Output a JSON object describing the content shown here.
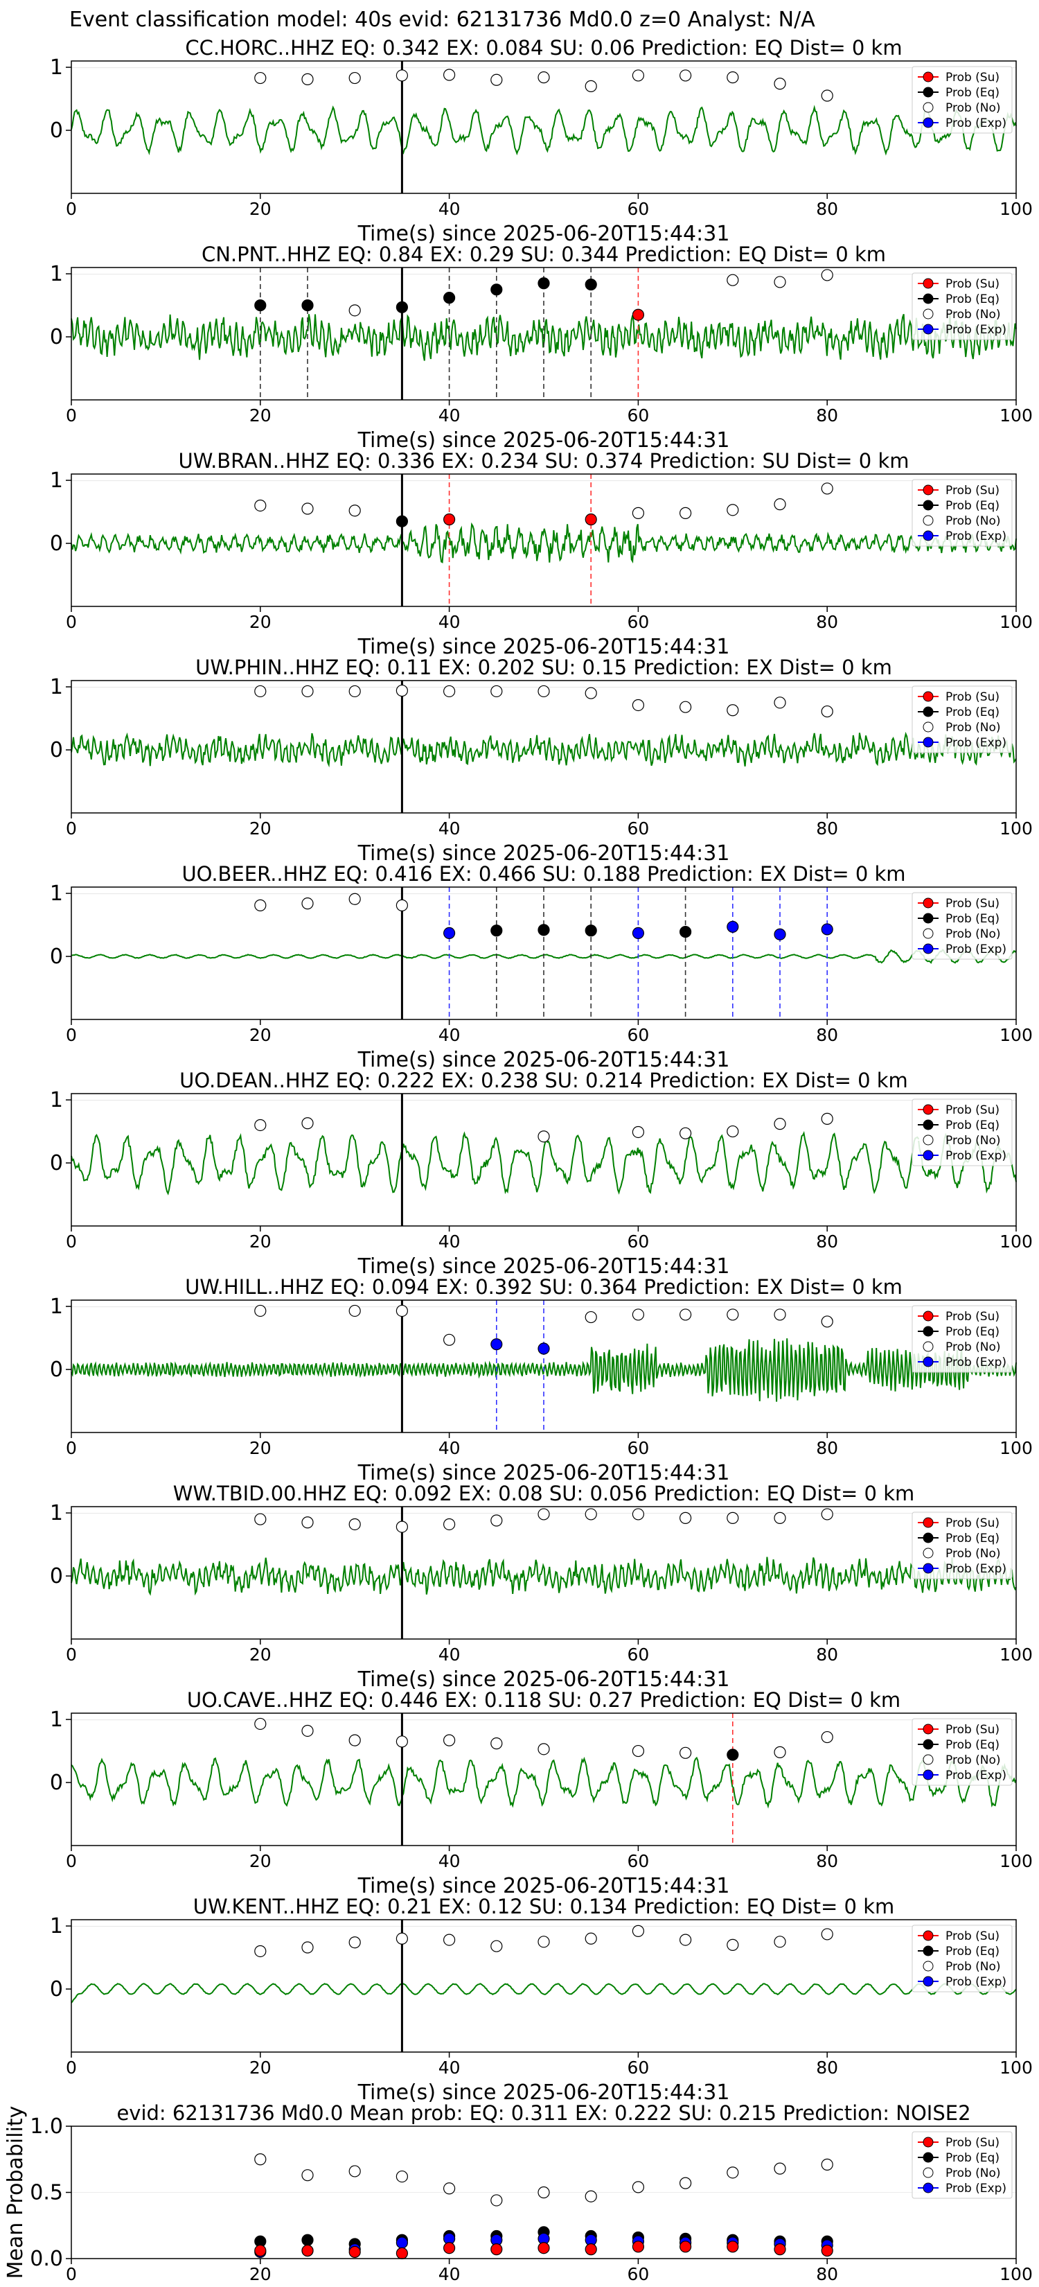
{
  "figure_title": "Event classification model: 40s evid: 62131736 Md0.0 z=0 Analyst: N/A",
  "legend_entries": [
    {
      "label": "Prob (Su)",
      "color": "#ff0000"
    },
    {
      "label": "Prob (Eq)",
      "color": "#000000"
    },
    {
      "label": "Prob (No)",
      "color": "#ffffff"
    },
    {
      "label": "Prob (Exp)",
      "color": "#0000ff"
    }
  ],
  "colors": {
    "waveform": "#008000",
    "arrival_line": "#000000",
    "su_marker": "#ff0000",
    "eq_marker": "#000000",
    "no_marker": "#ffffff",
    "exp_marker": "#0000ff"
  },
  "chart_data": [
    {
      "type": "line",
      "title": "CC.HORC..HHZ   EQ: 0.342  EX: 0.084  SU: 0.06   Prediction: EQ    Dist= 0 km",
      "xlabel": "Time(s) since 2025-06-20T15:44:31",
      "ylabel": "",
      "xlim": [
        0,
        100
      ],
      "x_ticks": [
        0,
        20,
        40,
        60,
        80,
        100
      ],
      "y_ticks": [
        0,
        1
      ],
      "arrival_time": 35,
      "waveform_style": "lowfreq",
      "waveform_amplitude": 0.32,
      "x": [
        20,
        25,
        30,
        35,
        40,
        45,
        50,
        55,
        60,
        65,
        70,
        75,
        80
      ],
      "series": [
        {
          "name": "Prob (No)",
          "values": [
            0.83,
            0.81,
            0.83,
            0.87,
            0.88,
            0.8,
            0.84,
            0.7,
            0.87,
            0.87,
            0.84,
            0.74,
            0.55
          ]
        }
      ],
      "dashed_lines": []
    },
    {
      "type": "line",
      "title": "CN.PNT..HHZ   EQ: 0.84  EX: 0.29  SU: 0.344   Prediction: EQ    Dist= 0 km",
      "xlabel": "Time(s) since 2025-06-20T15:44:31",
      "ylabel": "",
      "xlim": [
        0,
        100
      ],
      "x_ticks": [
        0,
        20,
        40,
        60,
        80,
        100
      ],
      "y_ticks": [
        0,
        1
      ],
      "arrival_time": 35,
      "waveform_style": "highfreq",
      "waveform_amplitude": 0.3,
      "x": [
        20,
        25,
        30,
        35,
        40,
        45,
        50,
        55,
        60,
        65,
        70,
        75,
        80
      ],
      "series": [
        {
          "name": "Prob (Eq)",
          "x": [
            20,
            25,
            35,
            40,
            45,
            50,
            55
          ],
          "values": [
            0.5,
            0.5,
            0.47,
            0.62,
            0.75,
            0.85,
            0.83
          ]
        },
        {
          "name": "Prob (Su)",
          "x": [
            60
          ],
          "values": [
            0.35
          ]
        },
        {
          "name": "Prob (No)",
          "x": [
            30,
            70,
            75,
            80
          ],
          "values": [
            0.42,
            0.9,
            0.87,
            0.98
          ]
        }
      ],
      "dashed_lines": [
        {
          "x": 20,
          "color": "black"
        },
        {
          "x": 25,
          "color": "black"
        },
        {
          "x": 35,
          "color": "black"
        },
        {
          "x": 40,
          "color": "black"
        },
        {
          "x": 45,
          "color": "black"
        },
        {
          "x": 50,
          "color": "black"
        },
        {
          "x": 55,
          "color": "black"
        },
        {
          "x": 60,
          "color": "red"
        }
      ]
    },
    {
      "type": "line",
      "title": "UW.BRAN..HHZ   EQ: 0.336  EX: 0.234  SU: 0.374   Prediction: SU    Dist= 0 km",
      "xlabel": "Time(s) since 2025-06-20T15:44:31",
      "ylabel": "",
      "xlim": [
        0,
        100
      ],
      "x_ticks": [
        0,
        20,
        40,
        60,
        80,
        100
      ],
      "y_ticks": [
        0,
        1
      ],
      "arrival_time": 35,
      "waveform_style": "mixed",
      "waveform_amplitude": 0.22,
      "x": [
        20,
        25,
        30,
        35,
        40,
        45,
        50,
        55,
        60,
        65,
        70,
        75,
        80
      ],
      "series": [
        {
          "name": "Prob (Su)",
          "x": [
            40,
            55
          ],
          "values": [
            0.38,
            0.38
          ]
        },
        {
          "name": "Prob (Eq)",
          "x": [
            35
          ],
          "values": [
            0.35
          ]
        },
        {
          "name": "Prob (No)",
          "x": [
            20,
            25,
            30,
            60,
            65,
            70,
            75,
            80
          ],
          "values": [
            0.6,
            0.55,
            0.52,
            0.48,
            0.48,
            0.53,
            0.62,
            0.87
          ]
        }
      ],
      "dashed_lines": [
        {
          "x": 40,
          "color": "red"
        },
        {
          "x": 55,
          "color": "red"
        }
      ]
    },
    {
      "type": "line",
      "title": "UW.PHIN..HHZ   EQ: 0.11  EX: 0.202  SU: 0.15   Prediction: EX    Dist= 0 km",
      "xlabel": "Time(s) since 2025-06-20T15:44:31",
      "ylabel": "",
      "xlim": [
        0,
        100
      ],
      "x_ticks": [
        0,
        20,
        40,
        60,
        80,
        100
      ],
      "y_ticks": [
        0,
        1
      ],
      "arrival_time": 35,
      "waveform_style": "highfreq",
      "waveform_amplitude": 0.22,
      "x": [
        20,
        25,
        30,
        35,
        40,
        45,
        50,
        55,
        60,
        65,
        70,
        75,
        80
      ],
      "series": [
        {
          "name": "Prob (No)",
          "values": [
            0.93,
            0.93,
            0.93,
            0.94,
            0.93,
            0.93,
            0.93,
            0.9,
            0.71,
            0.68,
            0.63,
            0.75,
            0.61
          ]
        }
      ],
      "dashed_lines": []
    },
    {
      "type": "line",
      "title": "UO.BEER..HHZ   EQ: 0.416  EX: 0.466  SU: 0.188   Prediction: EX    Dist= 0 km",
      "xlabel": "Time(s) since 2025-06-20T15:44:31",
      "ylabel": "",
      "xlim": [
        0,
        100
      ],
      "x_ticks": [
        0,
        20,
        40,
        60,
        80,
        100
      ],
      "y_ticks": [
        0,
        1
      ],
      "arrival_time": 35,
      "waveform_style": "quiet",
      "waveform_amplitude": 0.05,
      "x": [
        20,
        25,
        30,
        35,
        40,
        45,
        50,
        55,
        60,
        65,
        70,
        75,
        80
      ],
      "series": [
        {
          "name": "Prob (Exp)",
          "x": [
            40,
            60,
            70,
            75,
            80
          ],
          "values": [
            0.37,
            0.37,
            0.47,
            0.35,
            0.43
          ]
        },
        {
          "name": "Prob (Eq)",
          "x": [
            45,
            50,
            55,
            65
          ],
          "values": [
            0.41,
            0.42,
            0.41,
            0.39
          ]
        },
        {
          "name": "Prob (No)",
          "x": [
            20,
            25,
            30,
            35
          ],
          "values": [
            0.81,
            0.84,
            0.91,
            0.81
          ]
        }
      ],
      "dashed_lines": [
        {
          "x": 40,
          "color": "blue"
        },
        {
          "x": 45,
          "color": "black"
        },
        {
          "x": 50,
          "color": "black"
        },
        {
          "x": 55,
          "color": "black"
        },
        {
          "x": 60,
          "color": "blue"
        },
        {
          "x": 65,
          "color": "black"
        },
        {
          "x": 70,
          "color": "blue"
        },
        {
          "x": 75,
          "color": "blue"
        },
        {
          "x": 80,
          "color": "blue"
        }
      ]
    },
    {
      "type": "line",
      "title": "UO.DEAN..HHZ   EQ: 0.222  EX: 0.238  SU: 0.214   Prediction: EX    Dist= 0 km",
      "xlabel": "Time(s) since 2025-06-20T15:44:31",
      "ylabel": "",
      "xlim": [
        0,
        100
      ],
      "x_ticks": [
        0,
        20,
        40,
        60,
        80,
        100
      ],
      "y_ticks": [
        0,
        1
      ],
      "arrival_time": 35,
      "waveform_style": "lowfreq",
      "waveform_amplitude": 0.42,
      "x": [
        20,
        25,
        30,
        35,
        40,
        45,
        50,
        55,
        60,
        65,
        70,
        75,
        80
      ],
      "series": [
        {
          "name": "Prob (No)",
          "x": [
            20,
            25,
            50,
            60,
            65,
            70,
            75,
            80
          ],
          "values": [
            0.6,
            0.63,
            0.42,
            0.49,
            0.47,
            0.5,
            0.62,
            0.7
          ]
        }
      ],
      "dashed_lines": []
    },
    {
      "type": "line",
      "title": "UW.HILL..HHZ   EQ: 0.094  EX: 0.392  SU: 0.364   Prediction: EX    Dist= 0 km",
      "xlabel": "Time(s) since 2025-06-20T15:44:31",
      "ylabel": "",
      "xlim": [
        0,
        100
      ],
      "x_ticks": [
        0,
        20,
        40,
        60,
        80,
        100
      ],
      "y_ticks": [
        0,
        1
      ],
      "arrival_time": 35,
      "waveform_style": "burst",
      "waveform_amplitude": 0.22,
      "x": [
        20,
        25,
        30,
        35,
        40,
        45,
        50,
        55,
        60,
        65,
        70,
        75,
        80
      ],
      "series": [
        {
          "name": "Prob (Exp)",
          "x": [
            45,
            50
          ],
          "values": [
            0.4,
            0.33
          ]
        },
        {
          "name": "Prob (No)",
          "x": [
            20,
            30,
            35,
            40,
            55,
            60,
            65,
            70,
            75,
            80
          ],
          "values": [
            0.93,
            0.93,
            0.93,
            0.47,
            0.83,
            0.87,
            0.87,
            0.87,
            0.87,
            0.76
          ]
        }
      ],
      "dashed_lines": [
        {
          "x": 45,
          "color": "blue"
        },
        {
          "x": 50,
          "color": "blue"
        }
      ]
    },
    {
      "type": "line",
      "title": "WW.TBID.00.HHZ   EQ: 0.092  EX: 0.08  SU: 0.056   Prediction: EQ    Dist= 0 km",
      "xlabel": "Time(s) since 2025-06-20T15:44:31",
      "ylabel": "",
      "xlim": [
        0,
        100
      ],
      "x_ticks": [
        0,
        20,
        40,
        60,
        80,
        100
      ],
      "y_ticks": [
        0,
        1
      ],
      "arrival_time": 35,
      "waveform_style": "highfreq",
      "waveform_amplitude": 0.24,
      "x": [
        20,
        25,
        30,
        35,
        40,
        45,
        50,
        55,
        60,
        65,
        70,
        75,
        80
      ],
      "series": [
        {
          "name": "Prob (No)",
          "values": [
            0.9,
            0.85,
            0.82,
            0.78,
            0.82,
            0.88,
            0.98,
            0.98,
            0.98,
            0.92,
            0.92,
            0.92,
            0.98
          ]
        }
      ],
      "dashed_lines": []
    },
    {
      "type": "line",
      "title": "UO.CAVE..HHZ   EQ: 0.446  EX: 0.118  SU: 0.27   Prediction: EQ    Dist= 0 km",
      "xlabel": "Time(s) since 2025-06-20T15:44:31",
      "ylabel": "",
      "xlim": [
        0,
        100
      ],
      "x_ticks": [
        0,
        20,
        40,
        60,
        80,
        100
      ],
      "y_ticks": [
        0,
        1
      ],
      "arrival_time": 35,
      "waveform_style": "lowfreq",
      "waveform_amplitude": 0.34,
      "x": [
        20,
        25,
        30,
        35,
        40,
        45,
        50,
        55,
        60,
        65,
        70,
        75,
        80
      ],
      "series": [
        {
          "name": "Prob (Eq)",
          "x": [
            70
          ],
          "values": [
            0.44
          ]
        },
        {
          "name": "Prob (No)",
          "x": [
            20,
            25,
            30,
            35,
            40,
            45,
            50,
            60,
            65,
            75,
            80
          ],
          "values": [
            0.93,
            0.82,
            0.67,
            0.65,
            0.67,
            0.62,
            0.53,
            0.5,
            0.47,
            0.48,
            0.72
          ]
        }
      ],
      "dashed_lines": [
        {
          "x": 70,
          "color": "red"
        }
      ]
    },
    {
      "type": "line",
      "title": "UW.KENT..HHZ   EQ: 0.21  EX: 0.12  SU: 0.134   Prediction: EQ    Dist= 0 km",
      "xlabel": "Time(s) since 2025-06-20T15:44:31",
      "ylabel": "",
      "xlim": [
        0,
        100
      ],
      "x_ticks": [
        0,
        20,
        40,
        60,
        80,
        100
      ],
      "y_ticks": [
        0,
        1
      ],
      "arrival_time": 35,
      "waveform_style": "smooth",
      "waveform_amplitude": 0.1,
      "x": [
        20,
        25,
        30,
        35,
        40,
        45,
        50,
        55,
        60,
        65,
        70,
        75,
        80
      ],
      "series": [
        {
          "name": "Prob (No)",
          "values": [
            0.6,
            0.66,
            0.74,
            0.8,
            0.78,
            0.68,
            0.75,
            0.8,
            0.92,
            0.78,
            0.7,
            0.75,
            0.87
          ]
        }
      ],
      "dashed_lines": []
    },
    {
      "type": "scatter",
      "title": "evid: 62131736   Md0.0    Mean prob:   EQ: 0.311  EX: 0.222  SU: 0.215   Prediction: NOISE2",
      "xlabel": "",
      "ylabel": "Mean Probability",
      "xlim": [
        0,
        100
      ],
      "ylim": [
        0,
        1
      ],
      "x_ticks": [
        0,
        20,
        40,
        60,
        80,
        100
      ],
      "y_ticks": [
        0.0,
        0.5,
        1.0
      ],
      "x": [
        20,
        25,
        30,
        35,
        40,
        45,
        50,
        55,
        60,
        65,
        70,
        75,
        80
      ],
      "series": [
        {
          "name": "Prob (No)",
          "values": [
            0.75,
            0.63,
            0.66,
            0.62,
            0.53,
            0.44,
            0.5,
            0.47,
            0.54,
            0.57,
            0.65,
            0.68,
            0.71
          ]
        },
        {
          "name": "Prob (Eq)",
          "values": [
            0.13,
            0.14,
            0.11,
            0.14,
            0.17,
            0.17,
            0.2,
            0.17,
            0.16,
            0.15,
            0.14,
            0.13,
            0.13
          ]
        },
        {
          "name": "Prob (Exp)",
          "values": [
            0.05,
            0.06,
            0.07,
            0.12,
            0.15,
            0.14,
            0.15,
            0.14,
            0.13,
            0.12,
            0.12,
            0.11,
            0.1
          ]
        },
        {
          "name": "Prob (Su)",
          "values": [
            0.06,
            0.06,
            0.05,
            0.04,
            0.08,
            0.07,
            0.08,
            0.07,
            0.09,
            0.09,
            0.09,
            0.07,
            0.06
          ]
        }
      ],
      "dashed_lines": []
    }
  ]
}
